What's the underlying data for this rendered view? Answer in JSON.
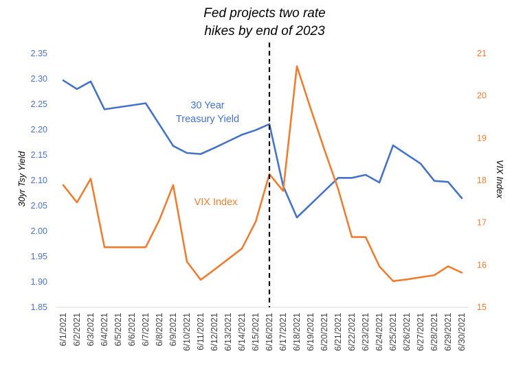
{
  "chart_data": {
    "type": "line",
    "annotation": {
      "lines": [
        "Fed projects two rate",
        "hikes by end of 2023"
      ],
      "at_category": "6/16/2021"
    },
    "categories": [
      "6/1/2021",
      "6/2/2021",
      "6/3/2021",
      "6/4/2021",
      "6/5/2021",
      "6/6/2021",
      "6/7/2021",
      "6/8/2021",
      "6/9/2021",
      "6/10/2021",
      "6/11/2021",
      "6/12/2021",
      "6/13/2021",
      "6/14/2021",
      "6/15/2021",
      "6/16/2021",
      "6/17/2021",
      "6/18/2021",
      "6/19/2021",
      "6/20/2021",
      "6/21/2021",
      "6/22/2021",
      "6/23/2021",
      "6/24/2021",
      "6/25/2021",
      "6/26/2021",
      "6/27/2021",
      "6/28/2021",
      "6/29/2021",
      "6/30/2021"
    ],
    "y_left": {
      "label": "30yr Tsy Yield",
      "range": [
        1.85,
        2.35
      ],
      "ticks": [
        "1.85",
        "1.90",
        "1.95",
        "2.00",
        "2.05",
        "2.10",
        "2.15",
        "2.20",
        "2.25",
        "2.30",
        "2.35"
      ],
      "color": "#4472c4"
    },
    "y_right": {
      "label": "VIX Index",
      "range": [
        15,
        21
      ],
      "ticks": [
        "15",
        "16",
        "17",
        "18",
        "19",
        "20",
        "21"
      ],
      "color": "#ed7d31"
    },
    "series": [
      {
        "name": "30 Year Treasury Yield",
        "label_lines": [
          "30 Year",
          "Treasury Yield"
        ],
        "axis": "left",
        "color": "#4472c4",
        "values": [
          2.297,
          2.28,
          2.295,
          2.24,
          2.244,
          2.248,
          2.252,
          2.21,
          2.168,
          2.154,
          2.152,
          2.164,
          2.177,
          2.19,
          2.199,
          2.211,
          2.089,
          2.027,
          2.053,
          2.079,
          2.105,
          2.105,
          2.111,
          2.096,
          2.169,
          2.151,
          2.133,
          2.099,
          2.097,
          2.065
        ]
      },
      {
        "name": "VIX Index",
        "label_lines": [
          "VIX Index"
        ],
        "axis": "right",
        "color": "#ed7d31",
        "values": [
          17.89,
          17.48,
          18.04,
          16.42,
          16.42,
          16.42,
          16.42,
          17.07,
          17.89,
          16.08,
          15.65,
          15.89,
          16.14,
          16.39,
          17.02,
          18.15,
          17.75,
          20.7,
          19.7,
          18.73,
          17.8,
          16.66,
          16.66,
          15.97,
          15.62,
          15.66,
          15.71,
          15.76,
          15.97,
          15.82
        ]
      }
    ],
    "grid": false,
    "legend": "none"
  }
}
